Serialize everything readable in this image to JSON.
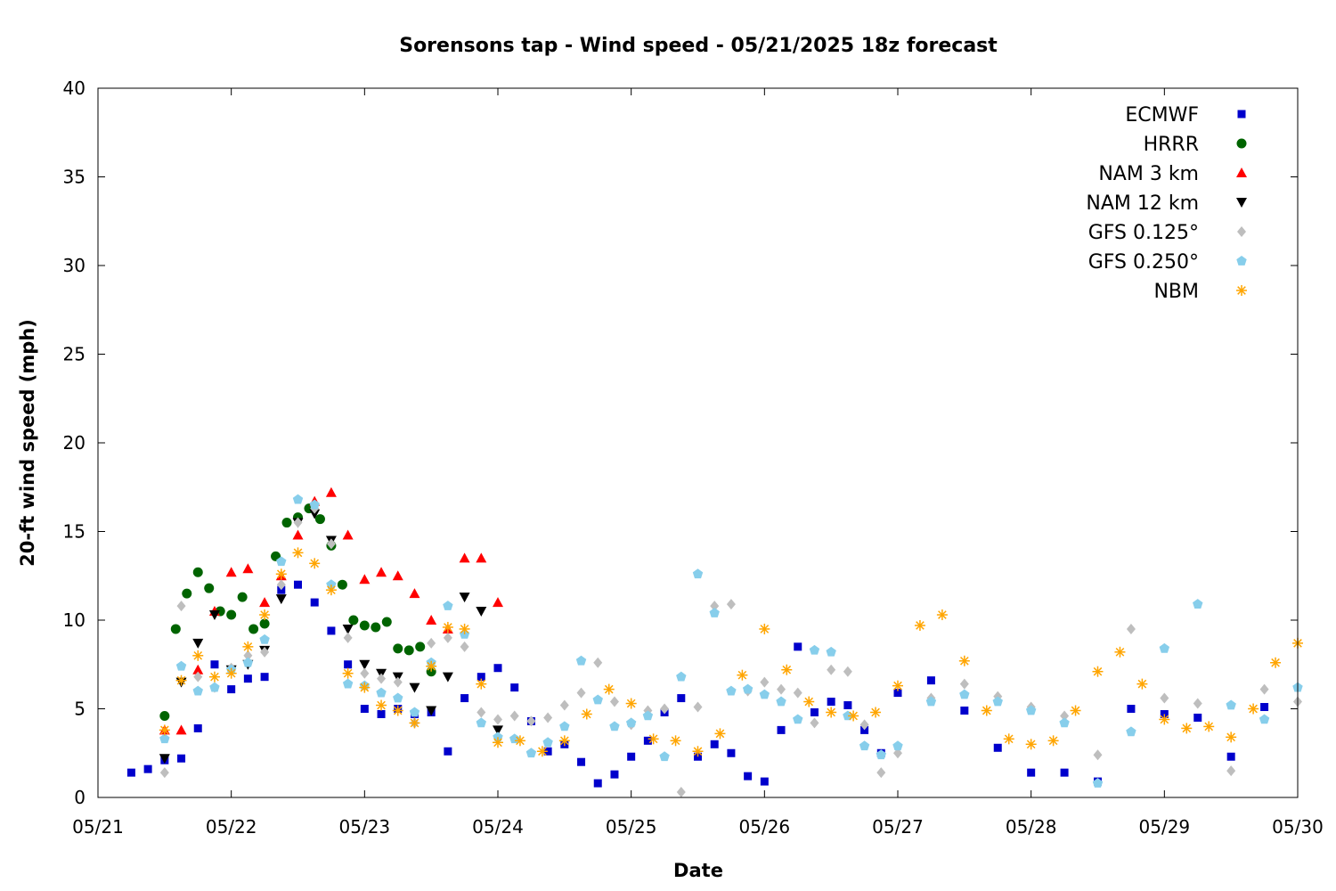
{
  "chart_data": {
    "type": "scatter",
    "title": "Sorensons tap - Wind speed - 05/21/2025 18z forecast",
    "xlabel": "Date",
    "ylabel": "20-ft wind speed (mph)",
    "xlim": [
      "05/21",
      "05/30"
    ],
    "ylim": [
      0,
      40
    ],
    "x_ticks": [
      "05/21",
      "05/22",
      "05/23",
      "05/24",
      "05/25",
      "05/26",
      "05/27",
      "05/28",
      "05/29",
      "05/30"
    ],
    "y_ticks": [
      0,
      5,
      10,
      15,
      20,
      25,
      30,
      35,
      40
    ],
    "grid": false,
    "legend_position": "top-right",
    "x_unit_note": "",
    "series": [
      {
        "name": "ECMWF",
        "marker": "square",
        "color": "#0000cc",
        "x": [
          "05/21 06:00",
          "05/21 09:00",
          "05/21 12:00",
          "05/21 15:00",
          "05/21 18:00",
          "05/21 21:00",
          "05/22 00:00",
          "05/22 03:00",
          "05/22 06:00",
          "05/22 09:00",
          "05/22 12:00",
          "05/22 15:00",
          "05/22 18:00",
          "05/22 21:00",
          "05/23 00:00",
          "05/23 03:00",
          "05/23 06:00",
          "05/23 09:00",
          "05/23 12:00",
          "05/23 15:00",
          "05/23 18:00",
          "05/23 21:00",
          "05/24 00:00",
          "05/24 03:00",
          "05/24 06:00",
          "05/24 09:00",
          "05/24 12:00",
          "05/24 15:00",
          "05/24 18:00",
          "05/24 21:00",
          "05/25 00:00",
          "05/25 03:00",
          "05/25 06:00",
          "05/25 09:00",
          "05/25 12:00",
          "05/25 15:00",
          "05/25 18:00",
          "05/25 21:00",
          "05/26 00:00",
          "05/26 03:00",
          "05/26 06:00",
          "05/26 09:00",
          "05/26 12:00",
          "05/26 15:00",
          "05/26 18:00",
          "05/26 21:00",
          "05/27 00:00",
          "05/27 06:00",
          "05/27 12:00",
          "05/27 18:00",
          "05/28 00:00",
          "05/28 06:00",
          "05/28 12:00",
          "05/28 18:00",
          "05/29 00:00",
          "05/29 06:00",
          "05/29 12:00",
          "05/29 18:00"
        ],
        "values": [
          1.4,
          1.6,
          2.1,
          2.2,
          3.9,
          7.5,
          6.1,
          6.7,
          6.8,
          11.7,
          12.0,
          11.0,
          9.4,
          7.5,
          5.0,
          4.7,
          5.0,
          4.7,
          4.8,
          2.6,
          5.6,
          6.8,
          7.3,
          6.2,
          4.3,
          2.6,
          3.0,
          2.0,
          0.8,
          1.3,
          2.3,
          3.2,
          4.8,
          5.6,
          2.3,
          3.0,
          2.5,
          1.2,
          0.9,
          3.8,
          8.5,
          4.8,
          5.4,
          5.2,
          3.8,
          2.5,
          5.9,
          6.6,
          4.9,
          2.8,
          1.4,
          1.4,
          0.9,
          5.0,
          4.7,
          4.5,
          2.3,
          5.1
        ]
      },
      {
        "name": "HRRR",
        "marker": "circle",
        "color": "#006400",
        "x": [
          "05/21 12:00",
          "05/21 14:00",
          "05/21 16:00",
          "05/21 18:00",
          "05/21 20:00",
          "05/21 22:00",
          "05/22 00:00",
          "05/22 02:00",
          "05/22 04:00",
          "05/22 06:00",
          "05/22 08:00",
          "05/22 10:00",
          "05/22 12:00",
          "05/22 14:00",
          "05/22 16:00",
          "05/22 18:00",
          "05/22 20:00",
          "05/22 22:00",
          "05/23 00:00",
          "05/23 02:00",
          "05/23 04:00",
          "05/23 06:00",
          "05/23 08:00",
          "05/23 10:00",
          "05/23 12:00"
        ],
        "values": [
          4.6,
          9.5,
          11.5,
          12.7,
          11.8,
          10.5,
          10.3,
          11.3,
          9.5,
          9.8,
          13.6,
          15.5,
          15.8,
          16.3,
          15.7,
          14.2,
          12.0,
          10.0,
          9.7,
          9.6,
          9.9,
          8.4,
          8.3,
          8.5,
          7.1
        ]
      },
      {
        "name": "NAM 3 km",
        "marker": "triangle-up",
        "color": "#ff0000",
        "x": [
          "05/21 12:00",
          "05/21 15:00",
          "05/21 18:00",
          "05/21 21:00",
          "05/22 00:00",
          "05/22 03:00",
          "05/22 06:00",
          "05/22 09:00",
          "05/22 12:00",
          "05/22 15:00",
          "05/22 18:00",
          "05/22 21:00",
          "05/23 00:00",
          "05/23 03:00",
          "05/23 06:00",
          "05/23 09:00",
          "05/23 12:00",
          "05/23 15:00",
          "05/23 18:00",
          "05/23 21:00",
          "05/24 00:00"
        ],
        "values": [
          3.8,
          3.8,
          7.2,
          10.5,
          12.7,
          12.9,
          11.0,
          12.5,
          14.8,
          16.7,
          17.2,
          14.8,
          12.3,
          12.7,
          12.5,
          11.5,
          10.0,
          9.5,
          13.5,
          13.5,
          11.0
        ]
      },
      {
        "name": "NAM 12 km",
        "marker": "triangle-down",
        "color": "#000000",
        "x": [
          "05/21 12:00",
          "05/21 15:00",
          "05/21 18:00",
          "05/21 21:00",
          "05/22 00:00",
          "05/22 03:00",
          "05/22 06:00",
          "05/22 09:00",
          "05/22 12:00",
          "05/22 15:00",
          "05/22 18:00",
          "05/22 21:00",
          "05/23 00:00",
          "05/23 03:00",
          "05/23 06:00",
          "05/23 09:00",
          "05/23 12:00",
          "05/23 15:00",
          "05/23 18:00",
          "05/23 21:00",
          "05/24 00:00"
        ],
        "values": [
          2.2,
          6.5,
          8.7,
          10.3,
          7.2,
          7.5,
          8.3,
          11.2,
          15.5,
          16.0,
          14.5,
          9.5,
          7.5,
          7.0,
          6.8,
          6.2,
          4.9,
          6.8,
          11.3,
          10.5,
          3.8
        ]
      },
      {
        "name": "GFS 0.125°",
        "marker": "diamond",
        "color": "#bebebe",
        "x": [
          "05/21 12:00",
          "05/21 15:00",
          "05/21 18:00",
          "05/21 21:00",
          "05/22 00:00",
          "05/22 03:00",
          "05/22 06:00",
          "05/22 09:00",
          "05/22 12:00",
          "05/22 15:00",
          "05/22 18:00",
          "05/22 21:00",
          "05/23 00:00",
          "05/23 03:00",
          "05/23 06:00",
          "05/23 09:00",
          "05/23 12:00",
          "05/23 15:00",
          "05/23 18:00",
          "05/23 21:00",
          "05/24 00:00",
          "05/24 03:00",
          "05/24 06:00",
          "05/24 09:00",
          "05/24 12:00",
          "05/24 15:00",
          "05/24 18:00",
          "05/24 21:00",
          "05/25 00:00",
          "05/25 03:00",
          "05/25 06:00",
          "05/25 09:00",
          "05/25 12:00",
          "05/25 15:00",
          "05/25 18:00",
          "05/25 21:00",
          "05/26 00:00",
          "05/26 03:00",
          "05/26 06:00",
          "05/26 09:00",
          "05/26 12:00",
          "05/26 15:00",
          "05/26 18:00",
          "05/26 21:00",
          "05/27 00:00",
          "05/27 06:00",
          "05/27 12:00",
          "05/27 18:00",
          "05/28 00:00",
          "05/28 06:00",
          "05/28 12:00",
          "05/28 18:00",
          "05/29 00:00",
          "05/29 06:00",
          "05/29 12:00",
          "05/29 18:00",
          "05/30 00:00"
        ],
        "values": [
          1.4,
          10.8,
          6.8,
          6.2,
          7.3,
          8.0,
          8.2,
          12.0,
          15.5,
          16.3,
          14.3,
          9.0,
          7.0,
          6.7,
          6.5,
          4.2,
          8.7,
          9.0,
          8.5,
          4.8,
          4.4,
          4.6,
          4.3,
          4.5,
          5.2,
          5.9,
          7.6,
          5.4,
          4.1,
          4.9,
          5.0,
          0.3,
          5.1,
          10.8,
          10.9,
          6.0,
          6.5,
          6.1,
          5.9,
          4.2,
          7.2,
          7.1,
          4.1,
          1.4,
          2.5,
          5.6,
          6.4,
          5.7,
          5.1,
          4.6,
          2.4,
          9.5,
          5.6,
          5.3,
          1.5,
          6.1,
          5.4
        ]
      },
      {
        "name": "GFS 0.250°",
        "marker": "pentagon",
        "color": "#87ceeb",
        "x": [
          "05/21 12:00",
          "05/21 15:00",
          "05/21 18:00",
          "05/21 21:00",
          "05/22 00:00",
          "05/22 03:00",
          "05/22 06:00",
          "05/22 09:00",
          "05/22 12:00",
          "05/22 15:00",
          "05/22 18:00",
          "05/22 21:00",
          "05/23 00:00",
          "05/23 03:00",
          "05/23 06:00",
          "05/23 09:00",
          "05/23 12:00",
          "05/23 15:00",
          "05/23 18:00",
          "05/23 21:00",
          "05/24 00:00",
          "05/24 03:00",
          "05/24 06:00",
          "05/24 09:00",
          "05/24 12:00",
          "05/24 15:00",
          "05/24 18:00",
          "05/24 21:00",
          "05/25 00:00",
          "05/25 03:00",
          "05/25 06:00",
          "05/25 09:00",
          "05/25 12:00",
          "05/25 15:00",
          "05/25 18:00",
          "05/25 21:00",
          "05/26 00:00",
          "05/26 03:00",
          "05/26 06:00",
          "05/26 09:00",
          "05/26 12:00",
          "05/26 15:00",
          "05/26 18:00",
          "05/26 21:00",
          "05/27 00:00",
          "05/27 06:00",
          "05/27 12:00",
          "05/27 18:00",
          "05/28 00:00",
          "05/28 06:00",
          "05/28 12:00",
          "05/28 18:00",
          "05/29 00:00",
          "05/29 06:00",
          "05/29 12:00",
          "05/29 18:00",
          "05/30 00:00"
        ],
        "values": [
          3.3,
          7.4,
          6.0,
          6.2,
          7.2,
          7.6,
          8.9,
          13.3,
          16.8,
          16.5,
          12.0,
          6.4,
          6.3,
          5.9,
          5.6,
          4.8,
          7.6,
          10.8,
          9.2,
          4.2,
          3.4,
          3.3,
          2.5,
          3.1,
          4.0,
          7.7,
          5.5,
          4.0,
          4.2,
          4.6,
          2.3,
          6.8,
          12.6,
          10.4,
          6.0,
          6.1,
          5.8,
          5.4,
          4.4,
          8.3,
          8.2,
          4.6,
          2.9,
          2.4,
          2.9,
          5.4,
          5.8,
          5.4,
          4.9,
          4.2,
          0.8,
          3.7,
          8.4,
          10.9,
          5.2,
          4.4,
          6.2
        ]
      },
      {
        "name": "NBM",
        "marker": "asterisk",
        "color": "#ffa500",
        "x": [
          "05/21 12:00",
          "05/21 15:00",
          "05/21 18:00",
          "05/21 21:00",
          "05/22 00:00",
          "05/22 03:00",
          "05/22 06:00",
          "05/22 09:00",
          "05/22 12:00",
          "05/22 15:00",
          "05/22 18:00",
          "05/22 21:00",
          "05/23 00:00",
          "05/23 03:00",
          "05/23 06:00",
          "05/23 09:00",
          "05/23 12:00",
          "05/23 15:00",
          "05/23 18:00",
          "05/23 21:00",
          "05/24 00:00",
          "05/24 04:00",
          "05/24 08:00",
          "05/24 12:00",
          "05/24 16:00",
          "05/24 20:00",
          "05/25 00:00",
          "05/25 04:00",
          "05/25 08:00",
          "05/25 12:00",
          "05/25 16:00",
          "05/25 20:00",
          "05/26 00:00",
          "05/26 04:00",
          "05/26 08:00",
          "05/26 12:00",
          "05/26 16:00",
          "05/26 20:00",
          "05/27 00:00",
          "05/27 04:00",
          "05/27 08:00",
          "05/27 12:00",
          "05/27 16:00",
          "05/27 20:00",
          "05/28 00:00",
          "05/28 04:00",
          "05/28 08:00",
          "05/28 12:00",
          "05/28 16:00",
          "05/28 20:00",
          "05/29 00:00",
          "05/29 04:00",
          "05/29 08:00",
          "05/29 12:00",
          "05/29 16:00",
          "05/29 20:00",
          "05/30 00:00"
        ],
        "values": [
          3.8,
          6.6,
          8.0,
          6.8,
          7.0,
          8.5,
          10.3,
          12.6,
          13.8,
          13.2,
          11.7,
          7.0,
          6.2,
          5.2,
          4.9,
          4.2,
          7.4,
          9.6,
          9.5,
          6.4,
          3.1,
          3.2,
          2.6,
          3.2,
          4.7,
          6.1,
          5.3,
          3.3,
          3.2,
          2.6,
          3.6,
          6.9,
          9.5,
          7.2,
          5.4,
          4.8,
          4.6,
          4.8,
          6.3,
          9.7,
          10.3,
          7.7,
          4.9,
          3.3,
          3.0,
          3.2,
          4.9,
          7.1,
          8.2,
          6.4,
          4.4,
          3.9,
          4.0,
          3.4,
          5.0,
          7.6,
          8.7
        ]
      }
    ]
  }
}
